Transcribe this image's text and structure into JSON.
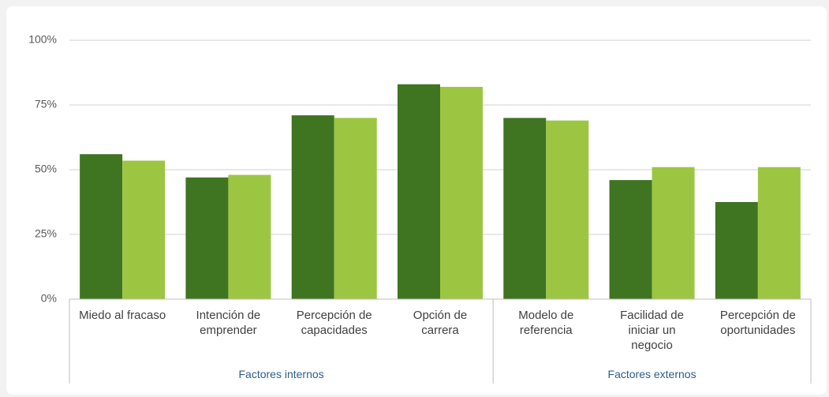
{
  "chart_data": {
    "type": "bar",
    "categories": [
      "Miedo al fracaso",
      "Intención de\nemprender",
      "Percepción de\ncapacidades",
      "Opción de\ncarrera",
      "Modelo de\nreferencia",
      "Facilidad de\niniciar un\nnegocio",
      "Percepción de\noportunidades"
    ],
    "groups": [
      "Factores internos",
      "Factores externos"
    ],
    "series": [
      {
        "color": "#3f7421",
        "values": [
          56,
          47,
          71,
          83,
          70,
          46,
          37.5
        ]
      },
      {
        "color": "#9cc641",
        "values": [
          53.5,
          48,
          70,
          82,
          69,
          51,
          51
        ]
      }
    ],
    "ylim": [
      0,
      100
    ],
    "yticks": [
      {
        "value": 0,
        "label": "0%"
      },
      {
        "value": 25,
        "label": "25%"
      },
      {
        "value": 50,
        "label": "50%"
      },
      {
        "value": 75,
        "label": "75%"
      },
      {
        "value": 100,
        "label": "100%"
      }
    ],
    "grid": true
  }
}
